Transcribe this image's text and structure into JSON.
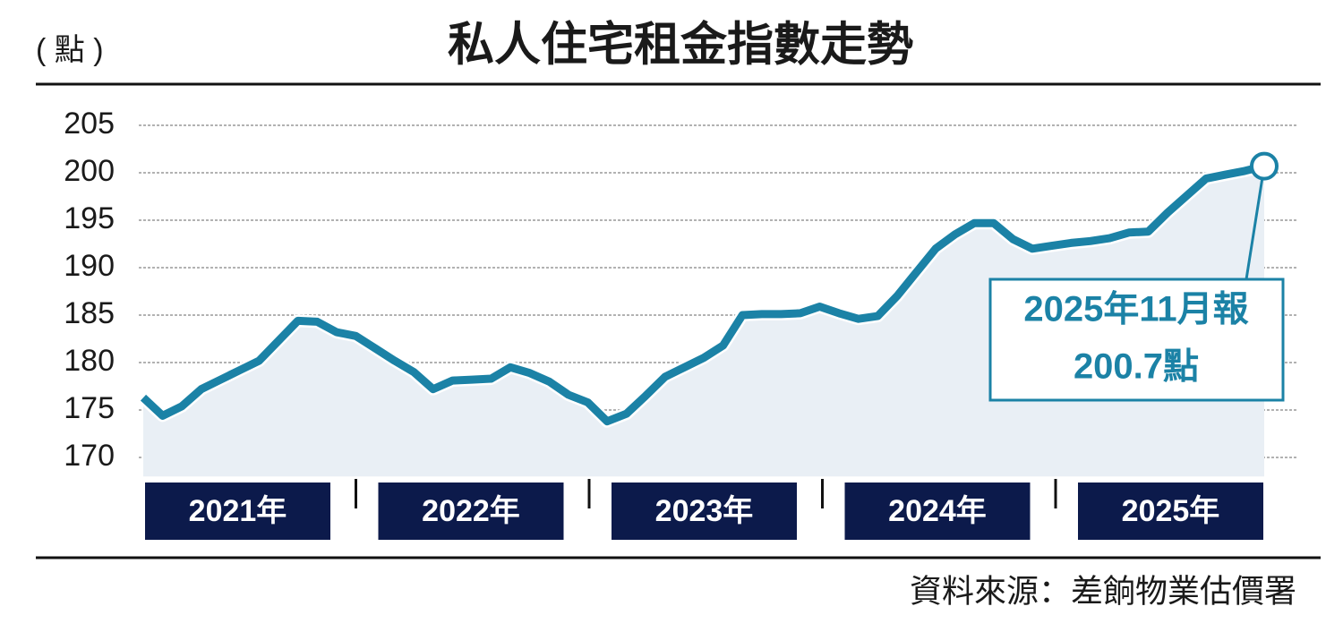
{
  "chart_data": {
    "type": "line",
    "title": "私人住宅租金指數走勢",
    "y_label": "( 點 )",
    "source": "資料來源：差餉物業估價署",
    "year_labels": [
      "2021年",
      "2022年",
      "2023年",
      "2024年",
      "2025年"
    ],
    "categories": [
      null,
      null,
      null,
      null,
      null,
      null,
      null,
      null,
      null,
      null,
      null,
      null,
      null,
      null,
      null,
      null,
      null,
      null,
      null,
      null,
      null,
      null,
      null,
      null,
      null,
      null,
      null,
      null,
      null,
      null,
      null,
      null,
      null,
      null,
      null,
      null,
      null,
      null,
      null,
      null,
      null,
      null,
      null,
      null,
      null,
      null,
      null,
      null,
      null,
      null,
      null,
      null,
      null,
      null,
      null,
      null,
      null,
      null,
      null
    ],
    "values": [
      176.3,
      174.4,
      175.4,
      177.2,
      178.2,
      179.2,
      180.2,
      182.3,
      184.4,
      184.3,
      183.2,
      182.8,
      181.5,
      180.2,
      179.0,
      177.2,
      178.1,
      178.2,
      178.3,
      179.5,
      178.9,
      178.0,
      176.6,
      175.8,
      173.8,
      174.6,
      176.5,
      178.5,
      179.5,
      180.5,
      181.8,
      185.0,
      185.1,
      185.1,
      185.2,
      185.9,
      185.2,
      184.6,
      184.9,
      187.0,
      189.5,
      192.0,
      193.5,
      194.7,
      194.7,
      193.0,
      192.0,
      192.3,
      192.6,
      192.8,
      193.1,
      193.7,
      193.8,
      195.8,
      197.6,
      199.4,
      199.8,
      200.2,
      200.7
    ],
    "color": "#1b82a6",
    "area_color": "#e9eff5",
    "annotation": [
      "2025年11月報",
      "200.7點"
    ],
    "ylim": [
      168,
      206
    ],
    "yticks": [
      170,
      175,
      180,
      185,
      190,
      195,
      200,
      205
    ],
    "grid": true
  }
}
